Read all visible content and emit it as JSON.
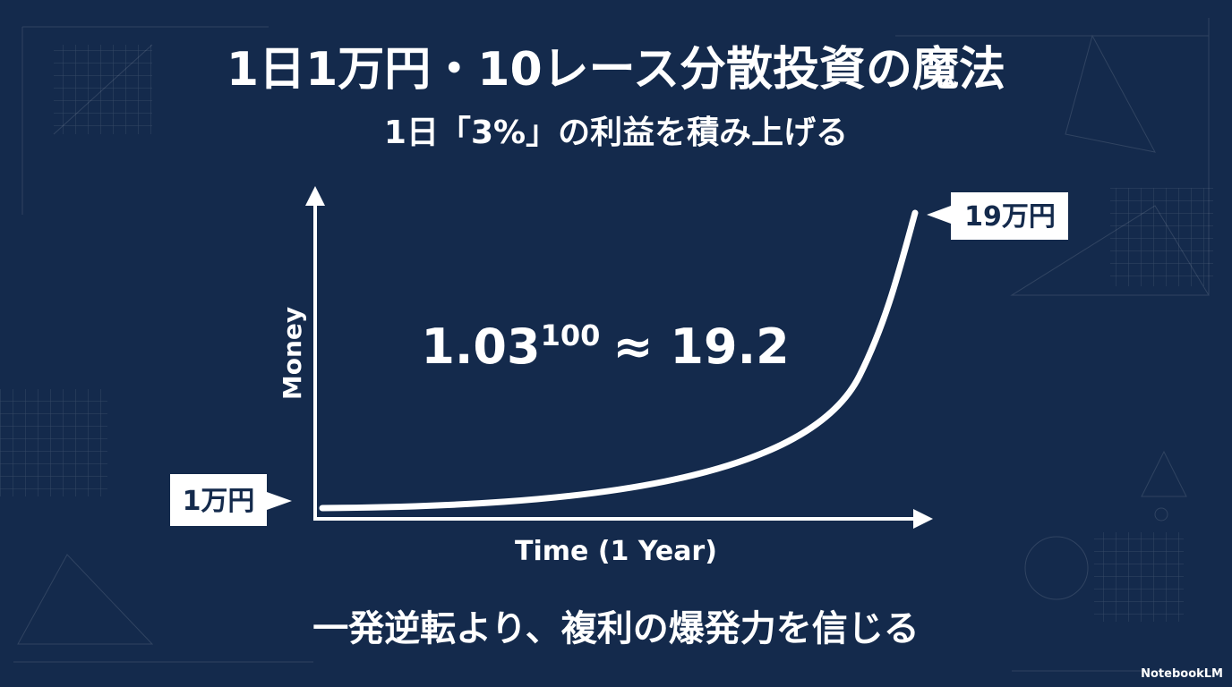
{
  "header": {
    "title": "1日1万円・10レース分散投資の魔法",
    "subtitle": "1日「3%」の利益を積み上げる"
  },
  "diagram": {
    "y_axis_label": "Money",
    "x_axis_label": "Time (1 Year)",
    "start_label": "1万円",
    "end_label": "19万円",
    "formula": {
      "base": "1.03",
      "exponent": "100",
      "result": "≈ 19.2"
    }
  },
  "footer": {
    "message": "一発逆転より、複利の爆発力を信じる",
    "watermark": "NotebookLM"
  }
}
